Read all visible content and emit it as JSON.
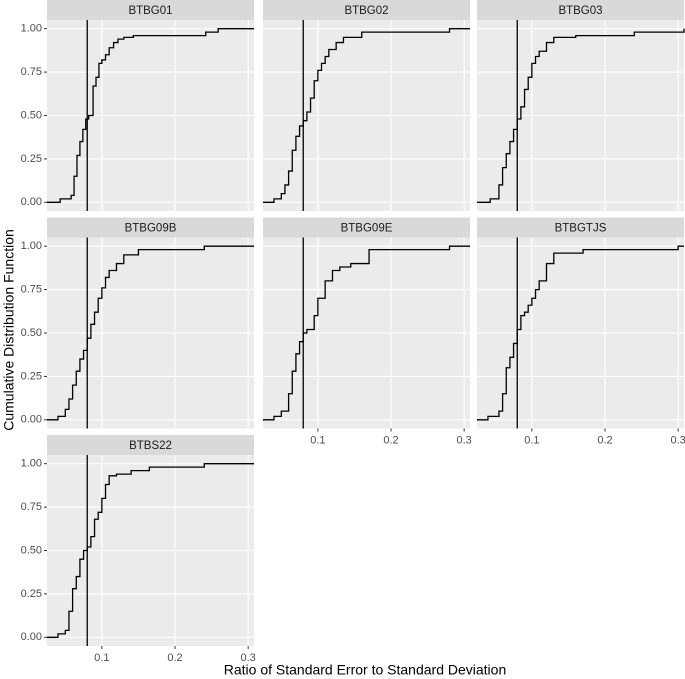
{
  "chart_data": {
    "type": "step",
    "x_label": "Ratio of Standard Error to Standard Deviation",
    "y_label": "Cumulative Distribution Function",
    "xlim": [
      0.025,
      0.308
    ],
    "ylim": [
      -0.05,
      1.05
    ],
    "xticks": [
      0.1,
      0.2,
      0.3
    ],
    "yticks": [
      {
        "value": 0,
        "label": "0.00"
      },
      {
        "value": 0.25,
        "label": "0.25"
      },
      {
        "value": 0.5,
        "label": "0.50"
      },
      {
        "value": 0.75,
        "label": "0.75"
      },
      {
        "value": 1,
        "label": "1.00"
      }
    ],
    "vline": 0.08,
    "color": "#000000",
    "grid": true,
    "panels": [
      {
        "title": "BTBG01",
        "x": [
          0.025,
          0.043,
          0.058,
          0.062,
          0.066,
          0.07,
          0.074,
          0.078,
          0.082,
          0.088,
          0.092,
          0.096,
          0.1,
          0.105,
          0.11,
          0.116,
          0.122,
          0.13,
          0.143,
          0.242,
          0.259,
          0.308
        ],
        "values": [
          0,
          0.02,
          0.04,
          0.15,
          0.27,
          0.35,
          0.42,
          0.48,
          0.5,
          0.67,
          0.72,
          0.8,
          0.82,
          0.85,
          0.89,
          0.92,
          0.94,
          0.95,
          0.96,
          0.98,
          1.0,
          1.0
        ]
      },
      {
        "title": "BTBG02",
        "x": [
          0.025,
          0.04,
          0.05,
          0.055,
          0.06,
          0.065,
          0.07,
          0.075,
          0.08,
          0.085,
          0.09,
          0.095,
          0.1,
          0.105,
          0.11,
          0.115,
          0.125,
          0.135,
          0.16,
          0.28,
          0.308
        ],
        "values": [
          0,
          0.02,
          0.05,
          0.1,
          0.18,
          0.3,
          0.38,
          0.44,
          0.47,
          0.52,
          0.6,
          0.7,
          0.76,
          0.8,
          0.84,
          0.88,
          0.92,
          0.95,
          0.98,
          1.0,
          1.0
        ]
      },
      {
        "title": "BTBG03",
        "x": [
          0.025,
          0.043,
          0.055,
          0.06,
          0.065,
          0.07,
          0.075,
          0.08,
          0.085,
          0.09,
          0.095,
          0.1,
          0.105,
          0.11,
          0.12,
          0.13,
          0.16,
          0.24,
          0.308
        ],
        "values": [
          0,
          0.02,
          0.1,
          0.2,
          0.28,
          0.35,
          0.42,
          0.48,
          0.55,
          0.65,
          0.72,
          0.8,
          0.84,
          0.87,
          0.92,
          0.95,
          0.96,
          0.98,
          1.0
        ]
      },
      {
        "title": "BTBG09B",
        "x": [
          0.025,
          0.04,
          0.05,
          0.055,
          0.06,
          0.065,
          0.07,
          0.075,
          0.08,
          0.085,
          0.09,
          0.095,
          0.1,
          0.105,
          0.11,
          0.12,
          0.13,
          0.15,
          0.24,
          0.308
        ],
        "values": [
          0,
          0.02,
          0.06,
          0.12,
          0.2,
          0.28,
          0.35,
          0.4,
          0.47,
          0.55,
          0.62,
          0.7,
          0.76,
          0.82,
          0.86,
          0.9,
          0.95,
          0.98,
          1.0,
          1.0
        ]
      },
      {
        "title": "BTBG09E",
        "x": [
          0.025,
          0.04,
          0.05,
          0.06,
          0.065,
          0.07,
          0.075,
          0.08,
          0.085,
          0.095,
          0.1,
          0.11,
          0.12,
          0.13,
          0.145,
          0.17,
          0.28,
          0.308
        ],
        "values": [
          0,
          0.02,
          0.05,
          0.15,
          0.28,
          0.38,
          0.45,
          0.5,
          0.52,
          0.6,
          0.7,
          0.8,
          0.86,
          0.88,
          0.9,
          0.98,
          1.0,
          1.0
        ]
      },
      {
        "title": "BTBGTJS",
        "x": [
          0.025,
          0.04,
          0.055,
          0.06,
          0.065,
          0.07,
          0.075,
          0.08,
          0.085,
          0.09,
          0.095,
          0.1,
          0.105,
          0.11,
          0.12,
          0.13,
          0.17,
          0.3,
          0.308
        ],
        "values": [
          0,
          0.02,
          0.05,
          0.15,
          0.3,
          0.36,
          0.44,
          0.52,
          0.6,
          0.62,
          0.66,
          0.7,
          0.75,
          0.8,
          0.9,
          0.96,
          0.98,
          1.0,
          1.0
        ]
      },
      {
        "title": "BTBS22",
        "x": [
          0.025,
          0.04,
          0.05,
          0.055,
          0.06,
          0.065,
          0.07,
          0.075,
          0.08,
          0.085,
          0.09,
          0.095,
          0.1,
          0.105,
          0.11,
          0.12,
          0.14,
          0.165,
          0.24,
          0.308
        ],
        "values": [
          0,
          0.02,
          0.04,
          0.15,
          0.28,
          0.35,
          0.45,
          0.5,
          0.52,
          0.58,
          0.68,
          0.72,
          0.8,
          0.88,
          0.93,
          0.94,
          0.96,
          0.98,
          1.0,
          1.0
        ]
      }
    ]
  }
}
